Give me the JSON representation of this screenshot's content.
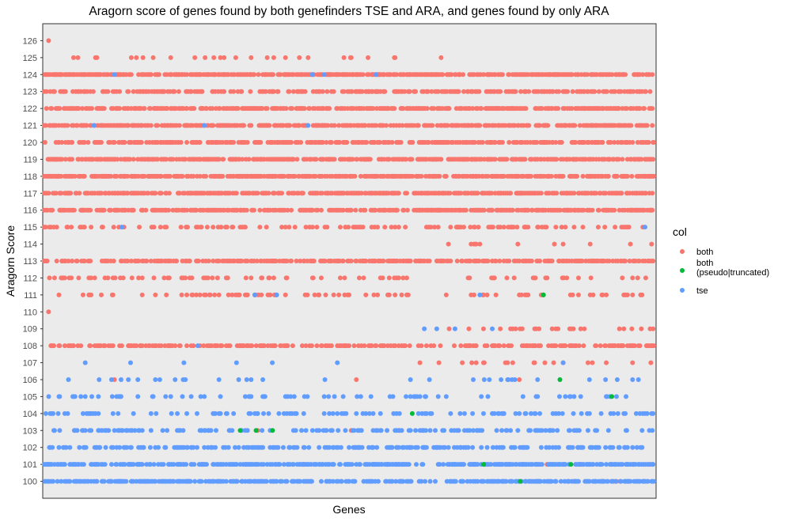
{
  "chart_data": {
    "type": "scatter",
    "title": "Aragorn score of genes found by both genefinders TSE and ARA, and genes found by only ARA",
    "xlabel": "Genes",
    "ylabel": "Aragorn Score",
    "ylim": [
      99,
      127
    ],
    "y_ticks": [
      100,
      101,
      102,
      103,
      104,
      105,
      106,
      107,
      108,
      109,
      110,
      111,
      112,
      113,
      114,
      115,
      116,
      117,
      118,
      119,
      120,
      121,
      122,
      123,
      124,
      125,
      126
    ],
    "x_ticks_shown": false,
    "gene_count": 1670,
    "grid": false,
    "panel_background": "#ebebeb",
    "legend": {
      "title": "col",
      "placement": "right",
      "entries": [
        {
          "label": "both",
          "color": "#f8766d"
        },
        {
          "label": "both\n (pseudo|truncated)",
          "color": "#00ba38"
        },
        {
          "label": "tse",
          "color": "#619cff"
        }
      ]
    },
    "series": [
      {
        "name": "both",
        "color": "#f8766d",
        "density_by_score": {
          "100": 0.005,
          "101": 0.01,
          "102": 0,
          "103": 0.005,
          "104": 0.003,
          "105": 0,
          "106": 0.01,
          "107": 0.12,
          "108": 0.62,
          "109": 0.14,
          "110": 0.01,
          "111": 0.24,
          "112": 0.2,
          "113": 0.78,
          "114": 0.04,
          "115": 0.3,
          "116": 0.84,
          "117": 0.88,
          "118": 0.9,
          "119": 0.9,
          "120": 0.8,
          "121": 0.78,
          "122": 0.85,
          "123": 0.62,
          "124": 0.9,
          "125": 0.09,
          "126": 0.002
        },
        "note_ranges": {
          "114": [
            0.6,
            1.0
          ],
          "109": [
            0.6,
            1.0
          ],
          "107": [
            0.6,
            1.0
          ],
          "110": [
            0,
            0.02
          ],
          "125": [
            0,
            0.68
          ],
          "126": [
            0,
            0.02
          ]
        }
      },
      {
        "name": "both\n (pseudo|truncated)",
        "points": [
          {
            "x": 0.321,
            "y": 103
          },
          {
            "x": 0.347,
            "y": 103
          },
          {
            "x": 0.374,
            "y": 103
          },
          {
            "x": 0.603,
            "y": 104
          },
          {
            "x": 0.72,
            "y": 101
          },
          {
            "x": 0.78,
            "y": 100
          },
          {
            "x": 0.818,
            "y": 111
          },
          {
            "x": 0.845,
            "y": 106
          },
          {
            "x": 0.863,
            "y": 101
          },
          {
            "x": 0.93,
            "y": 105
          }
        ],
        "color": "#00ba38"
      },
      {
        "name": "tse",
        "color": "#619cff",
        "density_by_score": {
          "100": 0.82,
          "101": 0.8,
          "102": 0.45,
          "103": 0.35,
          "104": 0.28,
          "105": 0.15,
          "106": 0.06,
          "107": 0.02,
          "108": 0.004,
          "109": 0.02,
          "110": 0,
          "111": 0.01,
          "112": 0,
          "113": 0,
          "114": 0,
          "115": 0.003,
          "116": 0.003,
          "117": 0,
          "118": 0,
          "119": 0,
          "120": 0.003,
          "121": 0.004,
          "122": 0.002,
          "123": 0,
          "124": 0.002,
          "125": 0,
          "126": 0
        }
      }
    ]
  }
}
